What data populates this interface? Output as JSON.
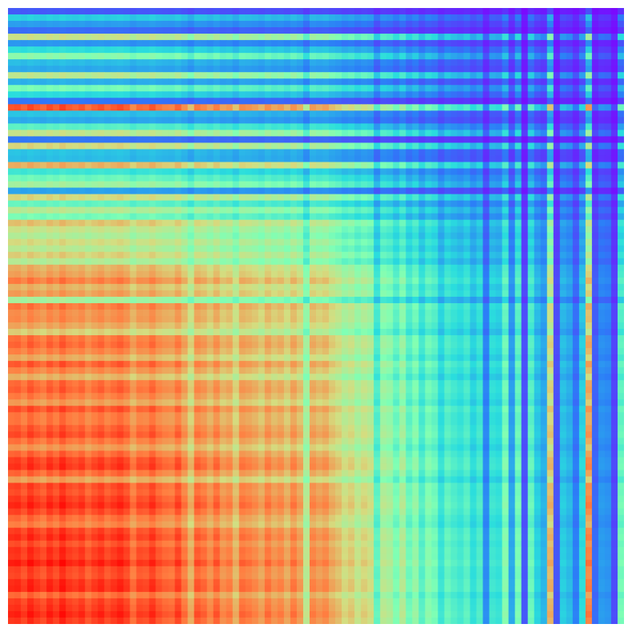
{
  "chart_data": {
    "type": "heatmap",
    "title": "",
    "xlabel": "",
    "ylabel": "",
    "grid": false,
    "legend": "none",
    "axes_visible": false,
    "colormap": "rainbow",
    "colormap_stops": [
      "#8000ff",
      "#2c7ef7",
      "#2adddd",
      "#80ffb4",
      "#d4dd80",
      "#ff7e41",
      "#ff0000"
    ],
    "value_range": [
      0,
      1
    ],
    "n_rows": 96,
    "n_cols": 96,
    "row_factors": [
      0.06,
      0.22,
      0.14,
      0.08,
      0.58,
      0.13,
      0.25,
      0.44,
      0.19,
      0.16,
      0.55,
      0.17,
      0.4,
      0.24,
      0.09,
      0.89,
      0.2,
      0.16,
      0.34,
      0.57,
      0.09,
      0.62,
      0.2,
      0.19,
      0.71,
      0.28,
      0.38,
      0.49,
      0.15,
      0.62,
      0.36,
      0.54,
      0.4,
      0.67,
      0.58,
      0.52,
      0.61,
      0.54,
      0.64,
      0.53,
      0.71,
      0.74,
      0.82,
      0.7,
      0.75,
      0.5,
      0.83,
      0.78,
      0.79,
      0.73,
      0.64,
      0.84,
      0.86,
      0.81,
      0.72,
      0.88,
      0.8,
      0.7,
      0.85,
      0.87,
      0.82,
      0.75,
      0.9,
      0.83,
      0.83,
      0.88,
      0.91,
      0.84,
      0.76,
      0.86,
      0.93,
      0.95,
      0.86,
      0.74,
      0.92,
      0.9,
      0.94,
      0.97,
      0.92,
      0.85,
      0.81,
      0.93,
      0.96,
      0.9,
      0.95,
      0.94,
      0.99,
      0.92,
      0.91,
      0.96,
      0.97,
      0.85,
      0.93,
      0.95,
      0.98,
      0.94
    ],
    "col_factors": [
      0.96,
      0.97,
      0.93,
      0.99,
      0.95,
      0.92,
      0.98,
      0.94,
      1.0,
      0.95,
      0.93,
      0.96,
      0.9,
      0.94,
      0.97,
      0.92,
      0.95,
      0.98,
      0.94,
      0.85,
      0.92,
      0.91,
      0.96,
      0.9,
      0.87,
      0.86,
      0.93,
      0.84,
      0.72,
      0.89,
      0.86,
      0.8,
      0.88,
      0.79,
      0.82,
      0.71,
      0.85,
      0.83,
      0.8,
      0.75,
      0.84,
      0.78,
      0.81,
      0.74,
      0.83,
      0.76,
      0.56,
      0.81,
      0.77,
      0.8,
      0.73,
      0.69,
      0.62,
      0.66,
      0.58,
      0.64,
      0.6,
      0.36,
      0.55,
      0.52,
      0.42,
      0.54,
      0.39,
      0.47,
      0.34,
      0.44,
      0.4,
      0.28,
      0.37,
      0.33,
      0.3,
      0.35,
      0.26,
      0.32,
      0.12,
      0.29,
      0.27,
      0.44,
      0.16,
      0.41,
      0.06,
      0.38,
      0.23,
      0.18,
      0.71,
      0.06,
      0.22,
      0.19,
      0.1,
      0.25,
      0.82,
      0.08,
      0.14,
      0.13,
      0.05,
      0.4
    ],
    "notes_visible": []
  }
}
